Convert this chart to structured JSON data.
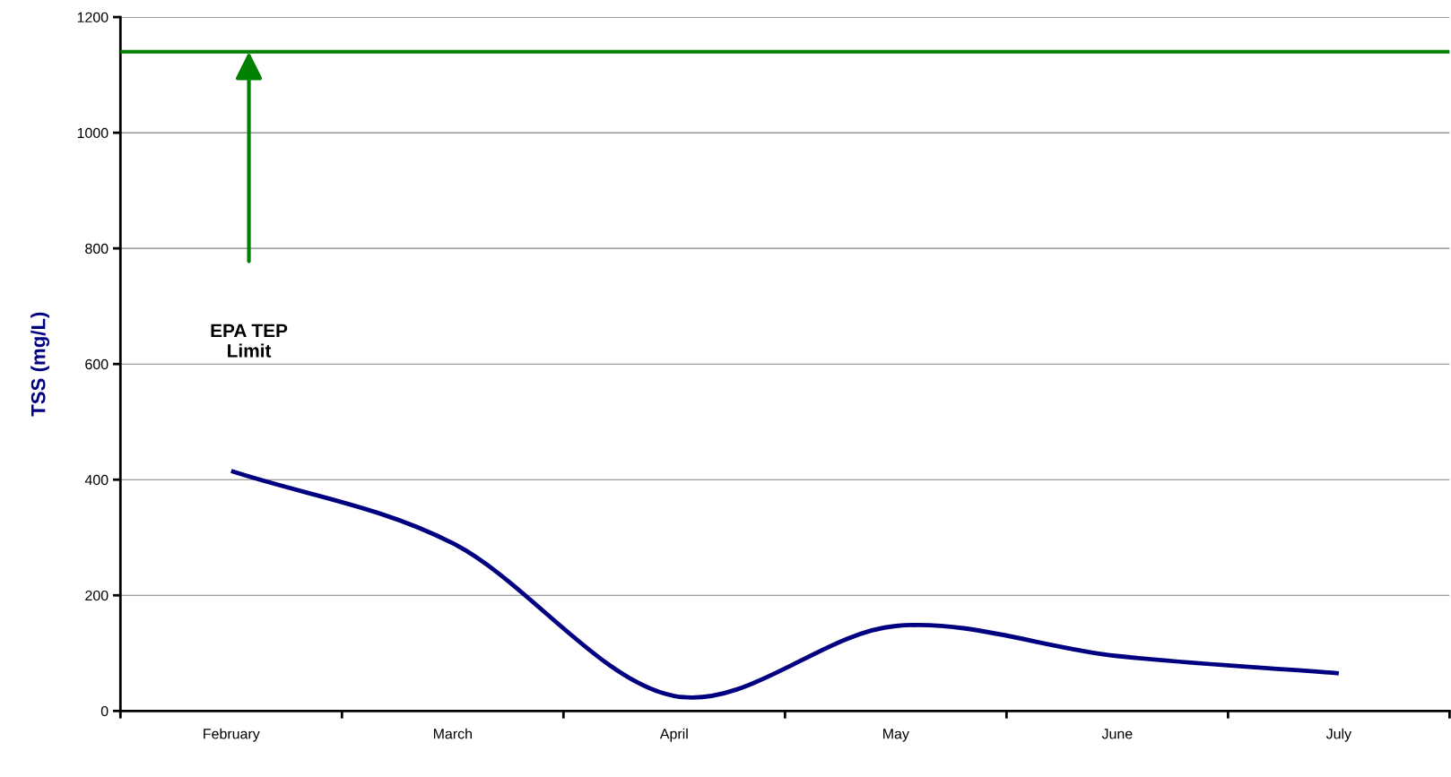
{
  "chart_data": {
    "type": "line",
    "ylabel": "TSS (mg/L)",
    "categories": [
      "February",
      "March",
      "April",
      "May",
      "June",
      "July"
    ],
    "series": [
      {
        "color": "#000080",
        "values": [
          415,
          290,
          26,
          147,
          95,
          65
        ]
      }
    ],
    "ylim": [
      0,
      1200
    ],
    "yticks": [
      0,
      200,
      400,
      600,
      800,
      1000,
      1200
    ],
    "grid": "y",
    "legend": false,
    "marker": "none",
    "line_style": "solid",
    "ref_lines": [
      {
        "axis": "y",
        "value": 1140,
        "color": "#008000",
        "line_style": "solid"
      }
    ],
    "annotations": [
      "EPA TEP\nLimit"
    ]
  }
}
